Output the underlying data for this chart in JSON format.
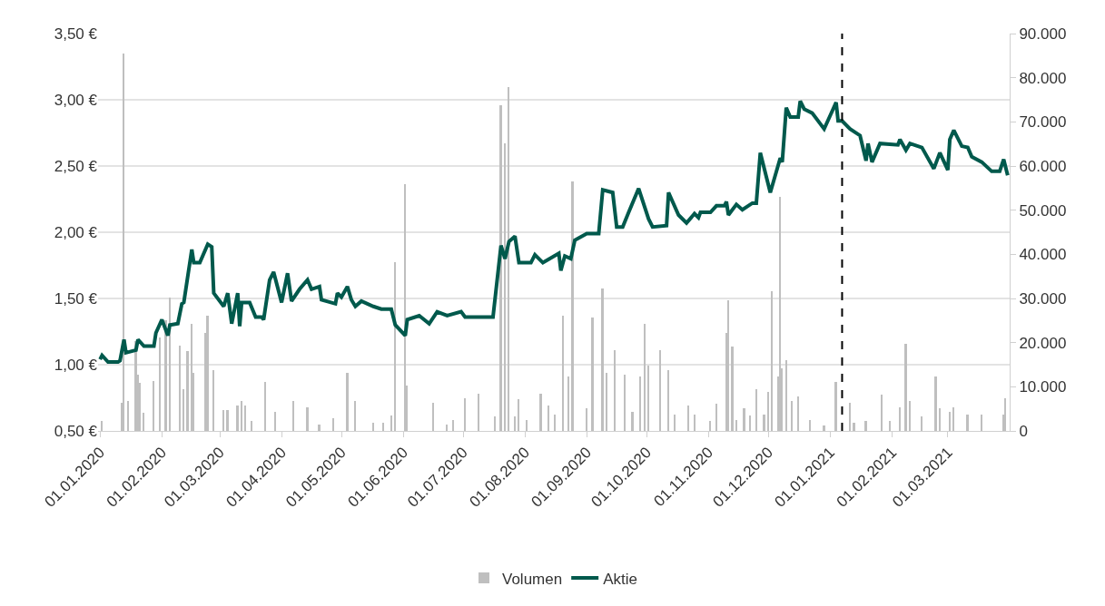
{
  "chart_data": {
    "type": "line",
    "xlim": [
      "2019-12-31",
      "2021-04-01"
    ],
    "xticks": [
      {
        "value": "2020-01-01",
        "label": "01.01.2020"
      },
      {
        "value": "2020-02-01",
        "label": "01.02.2020"
      },
      {
        "value": "2020-03-01",
        "label": "01.03.2020"
      },
      {
        "value": "2020-04-01",
        "label": "01.04.2020"
      },
      {
        "value": "2020-05-01",
        "label": "01.05.2020"
      },
      {
        "value": "2020-06-01",
        "label": "01.06.2020"
      },
      {
        "value": "2020-07-01",
        "label": "01.07.2020"
      },
      {
        "value": "2020-08-01",
        "label": "01.08.2020"
      },
      {
        "value": "2020-09-01",
        "label": "01.09.2020"
      },
      {
        "value": "2020-10-01",
        "label": "01.10.2020"
      },
      {
        "value": "2020-11-01",
        "label": "01.11.2020"
      },
      {
        "value": "2020-12-01",
        "label": "01.12.2020"
      },
      {
        "value": "2021-01-01",
        "label": "01.01.2021"
      },
      {
        "value": "2021-02-01",
        "label": "01.02.2021"
      },
      {
        "value": "2021-03-01",
        "label": "01.03.2021"
      }
    ],
    "ylim": [
      0.5,
      3.5
    ],
    "yticks": [
      {
        "value": 0.5,
        "label": "0,50 €"
      },
      {
        "value": 1.0,
        "label": "1,00 €"
      },
      {
        "value": 1.5,
        "label": "1,50 €"
      },
      {
        "value": 2.0,
        "label": "2,00 €"
      },
      {
        "value": 2.5,
        "label": "2,50 €"
      },
      {
        "value": 3.0,
        "label": "3,00 €"
      },
      {
        "value": 3.5,
        "label": "3,50 €"
      }
    ],
    "y2lim": [
      0,
      90000
    ],
    "y2ticks": [
      {
        "value": 0,
        "label": "0"
      },
      {
        "value": 10000,
        "label": "10.000"
      },
      {
        "value": 20000,
        "label": "20.000"
      },
      {
        "value": 30000,
        "label": "30.000"
      },
      {
        "value": 40000,
        "label": "40.000"
      },
      {
        "value": 50000,
        "label": "50.000"
      },
      {
        "value": 60000,
        "label": "60.000"
      },
      {
        "value": 70000,
        "label": "70.000"
      },
      {
        "value": 80000,
        "label": "80.000"
      },
      {
        "value": 90000,
        "label": "90.000"
      }
    ],
    "grid": "y",
    "legend": "bottom",
    "series": [
      {
        "name": "Volumen",
        "type": "bar",
        "axis": "y2",
        "color": "#bfbfbf",
        "x": [
          "2020-01-02",
          "2020-01-12",
          "2020-01-13",
          "2020-01-15",
          "2020-01-19",
          "2020-01-20",
          "2020-01-21",
          "2020-01-23",
          "2020-01-28",
          "2020-01-31",
          "2020-02-03",
          "2020-02-05",
          "2020-02-10",
          "2020-02-12",
          "2020-02-14",
          "2020-02-16",
          "2020-02-17",
          "2020-02-23",
          "2020-02-24",
          "2020-02-27",
          "2020-03-03",
          "2020-03-05",
          "2020-03-10",
          "2020-03-12",
          "2020-03-14",
          "2020-03-17",
          "2020-03-24",
          "2020-03-29",
          "2020-04-07",
          "2020-04-14",
          "2020-04-20",
          "2020-04-27",
          "2020-05-04",
          "2020-05-08",
          "2020-05-17",
          "2020-05-22",
          "2020-05-26",
          "2020-05-28",
          "2020-06-02",
          "2020-06-03",
          "2020-06-16",
          "2020-06-23",
          "2020-06-26",
          "2020-07-02",
          "2020-07-09",
          "2020-07-17",
          "2020-07-20",
          "2020-07-22",
          "2020-07-24",
          "2020-07-27",
          "2020-07-29",
          "2020-08-02",
          "2020-08-09",
          "2020-08-13",
          "2020-08-16",
          "2020-08-20",
          "2020-08-23",
          "2020-08-25",
          "2020-09-01",
          "2020-09-04",
          "2020-09-09",
          "2020-09-11",
          "2020-09-15",
          "2020-09-20",
          "2020-09-24",
          "2020-09-28",
          "2020-09-30",
          "2020-10-02",
          "2020-10-08",
          "2020-10-12",
          "2020-10-15",
          "2020-10-22",
          "2020-10-25",
          "2020-11-02",
          "2020-11-05",
          "2020-11-10",
          "2020-11-11",
          "2020-11-13",
          "2020-11-15",
          "2020-11-19",
          "2020-11-22",
          "2020-11-25",
          "2020-11-29",
          "2020-12-01",
          "2020-12-03",
          "2020-12-06",
          "2020-12-07",
          "2020-12-08",
          "2020-12-10",
          "2020-12-13",
          "2020-12-16",
          "2020-12-22",
          "2020-12-29",
          "2021-01-04",
          "2021-01-11",
          "2021-01-13",
          "2021-01-19",
          "2021-01-27",
          "2021-01-31",
          "2021-02-05",
          "2021-02-08",
          "2021-02-10",
          "2021-02-16",
          "2021-02-23",
          "2021-02-25",
          "2021-03-02",
          "2021-03-04",
          "2021-03-11",
          "2021-03-18",
          "2021-03-29",
          "2021-03-30"
        ],
        "values": [
          2200,
          6400,
          85400,
          6800,
          20300,
          12700,
          10800,
          4200,
          11300,
          21100,
          25000,
          30200,
          19300,
          9400,
          18100,
          24300,
          13100,
          22100,
          26100,
          13700,
          4800,
          4800,
          5800,
          6800,
          5800,
          2200,
          11100,
          4400,
          6800,
          5400,
          1400,
          2800,
          13100,
          6800,
          1800,
          1800,
          3400,
          38200,
          55900,
          10300,
          6400,
          1400,
          2400,
          7400,
          8400,
          3200,
          73800,
          65100,
          77800,
          3200,
          7200,
          2400,
          8400,
          5800,
          3800,
          26100,
          12300,
          56500,
          5200,
          25700,
          32200,
          13100,
          18300,
          12700,
          4400,
          12300,
          24300,
          14700,
          18300,
          13700,
          3800,
          5800,
          3800,
          2200,
          6200,
          22100,
          29600,
          19100,
          2400,
          5200,
          3400,
          9400,
          3800,
          8800,
          31600,
          12300,
          53100,
          14100,
          16100,
          6800,
          7800,
          2400,
          1200,
          11100,
          6400,
          1800,
          2200,
          8200,
          2200,
          5400,
          19700,
          6800,
          3200,
          12300,
          5200,
          4400,
          5400,
          3800,
          3800,
          3800,
          7400
        ]
      },
      {
        "name": "Aktie",
        "color": "#00594c",
        "x": [
          "2020-01-01",
          "2020-01-02",
          "2020-01-05",
          "2020-01-10",
          "2020-01-11",
          "2020-01-13",
          "2020-01-14",
          "2020-01-19",
          "2020-01-20",
          "2020-01-23",
          "2020-01-28",
          "2020-01-29",
          "2020-02-01",
          "2020-02-04",
          "2020-02-05",
          "2020-02-09",
          "2020-02-11",
          "2020-02-12",
          "2020-02-16",
          "2020-02-17",
          "2020-02-20",
          "2020-02-24",
          "2020-02-26",
          "2020-02-27",
          "2020-03-03",
          "2020-03-05",
          "2020-03-07",
          "2020-03-10",
          "2020-03-11",
          "2020-03-12",
          "2020-03-16",
          "2020-03-19",
          "2020-03-22",
          "2020-03-23",
          "2020-03-26",
          "2020-03-28",
          "2020-04-01",
          "2020-04-04",
          "2020-04-06",
          "2020-04-10",
          "2020-04-14",
          "2020-04-16",
          "2020-04-20",
          "2020-04-21",
          "2020-04-28",
          "2020-04-29",
          "2020-05-01",
          "2020-05-04",
          "2020-05-06",
          "2020-05-08",
          "2020-05-11",
          "2020-05-17",
          "2020-05-21",
          "2020-05-26",
          "2020-05-28",
          "2020-06-02",
          "2020-06-03",
          "2020-06-09",
          "2020-06-14",
          "2020-06-18",
          "2020-06-23",
          "2020-06-30",
          "2020-07-02",
          "2020-07-16",
          "2020-07-20",
          "2020-07-22",
          "2020-07-24",
          "2020-07-27",
          "2020-07-29",
          "2020-08-04",
          "2020-08-06",
          "2020-08-10",
          "2020-08-18",
          "2020-08-19",
          "2020-08-21",
          "2020-08-24",
          "2020-08-26",
          "2020-09-01",
          "2020-09-07",
          "2020-09-09",
          "2020-09-14",
          "2020-09-16",
          "2020-09-19",
          "2020-09-22",
          "2020-09-27",
          "2020-10-02",
          "2020-10-04",
          "2020-10-11",
          "2020-10-12",
          "2020-10-17",
          "2020-10-21",
          "2020-10-25",
          "2020-10-27",
          "2020-10-28",
          "2020-11-02",
          "2020-11-05",
          "2020-11-09",
          "2020-11-10",
          "2020-11-11",
          "2020-11-15",
          "2020-11-18",
          "2020-11-23",
          "2020-11-25",
          "2020-11-27",
          "2020-12-02",
          "2020-12-07",
          "2020-12-08",
          "2020-12-10",
          "2020-12-12",
          "2020-12-16",
          "2020-12-17",
          "2020-12-19",
          "2020-12-23",
          "2020-12-29",
          "2021-01-01",
          "2021-01-04",
          "2021-01-05",
          "2021-01-07",
          "2021-01-11",
          "2021-01-16",
          "2021-01-19",
          "2021-01-20",
          "2021-01-22",
          "2021-01-26",
          "2021-02-04",
          "2021-02-05",
          "2021-02-08",
          "2021-02-10",
          "2021-02-16",
          "2021-02-22",
          "2021-02-25",
          "2021-03-01",
          "2021-03-02",
          "2021-03-04",
          "2021-03-08",
          "2021-03-11",
          "2021-03-13",
          "2021-03-18",
          "2021-03-23",
          "2021-03-27",
          "2021-03-29",
          "2021-03-31"
        ],
        "values": [
          1.04,
          1.07,
          1.02,
          1.02,
          1.03,
          1.19,
          1.09,
          1.11,
          1.19,
          1.14,
          1.14,
          1.24,
          1.34,
          1.22,
          1.3,
          1.31,
          1.46,
          1.47,
          1.87,
          1.77,
          1.77,
          1.91,
          1.89,
          1.54,
          1.44,
          1.54,
          1.31,
          1.54,
          1.29,
          1.47,
          1.47,
          1.36,
          1.36,
          1.34,
          1.64,
          1.7,
          1.47,
          1.69,
          1.48,
          1.57,
          1.64,
          1.57,
          1.59,
          1.49,
          1.46,
          1.54,
          1.51,
          1.59,
          1.49,
          1.44,
          1.48,
          1.44,
          1.42,
          1.42,
          1.3,
          1.22,
          1.34,
          1.37,
          1.31,
          1.4,
          1.37,
          1.4,
          1.36,
          1.36,
          1.9,
          1.8,
          1.93,
          1.97,
          1.77,
          1.77,
          1.83,
          1.77,
          1.84,
          1.71,
          1.82,
          1.8,
          1.94,
          1.99,
          1.99,
          2.32,
          2.3,
          2.04,
          2.04,
          2.15,
          2.33,
          2.1,
          2.04,
          2.05,
          2.3,
          2.13,
          2.07,
          2.14,
          2.11,
          2.15,
          2.15,
          2.2,
          2.2,
          2.23,
          2.13,
          2.21,
          2.17,
          2.22,
          2.22,
          2.6,
          2.3,
          2.56,
          2.53,
          2.94,
          2.87,
          2.87,
          2.99,
          2.93,
          2.9,
          2.78,
          2.88,
          2.98,
          2.84,
          2.84,
          2.78,
          2.73,
          2.54,
          2.67,
          2.53,
          2.67,
          2.66,
          2.7,
          2.62,
          2.67,
          2.64,
          2.48,
          2.6,
          2.47,
          2.7,
          2.77,
          2.65,
          2.64,
          2.57,
          2.53,
          2.46,
          2.46,
          2.55,
          2.43
        ]
      }
    ],
    "ref_lines": [
      {
        "axis": "x",
        "value": "2021-01-07",
        "color": "#000000",
        "line_style": "dashed"
      }
    ]
  }
}
